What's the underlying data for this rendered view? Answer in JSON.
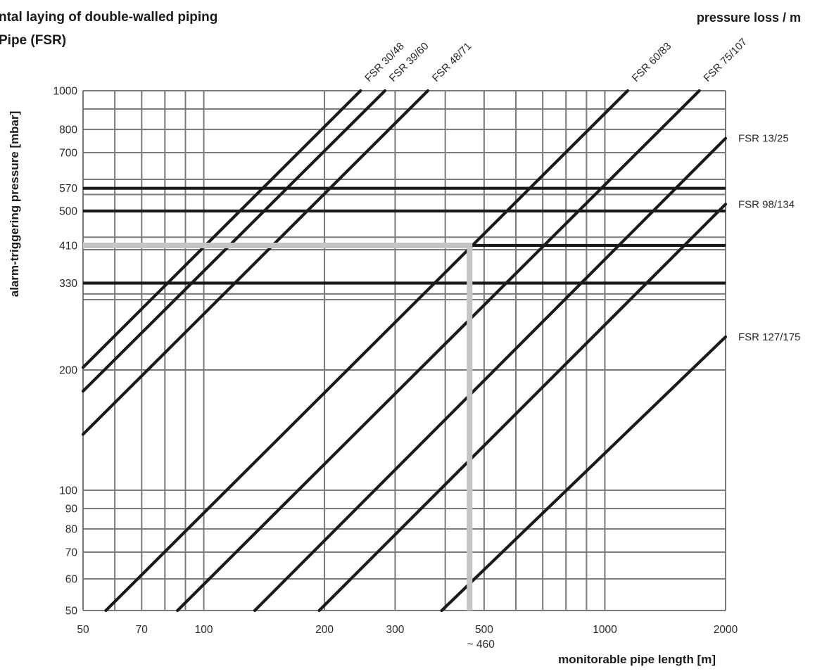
{
  "title_lines": [
    "ntal laying of double-walled piping",
    "Pipe (FSR)"
  ],
  "corner_label": "pressure loss / m",
  "chart_data": {
    "type": "line",
    "xscale": "log",
    "yscale": "log",
    "xlim": [
      50,
      2000
    ],
    "ylim": [
      50,
      1000
    ],
    "xlabel": "monitorable pipe length [m]",
    "ylabel": "alarm-triggering pressure [mbar]",
    "grid": true,
    "x_ticks": [
      {
        "value": 50,
        "label": "50"
      },
      {
        "value": 70,
        "label": "70"
      },
      {
        "value": 100,
        "label": "100"
      },
      {
        "value": 200,
        "label": "200"
      },
      {
        "value": 300,
        "label": "300"
      },
      {
        "value": 500,
        "label": "500"
      },
      {
        "value": 1000,
        "label": "1000"
      },
      {
        "value": 2000,
        "label": "2000"
      }
    ],
    "x_gridlines": [
      50,
      60,
      70,
      80,
      90,
      100,
      200,
      300,
      400,
      500,
      600,
      700,
      800,
      900,
      1000,
      2000
    ],
    "y_ticks": [
      {
        "value": 50,
        "label": "50"
      },
      {
        "value": 60,
        "label": "60"
      },
      {
        "value": 70,
        "label": "70"
      },
      {
        "value": 80,
        "label": "80"
      },
      {
        "value": 90,
        "label": "90"
      },
      {
        "value": 100,
        "label": "100"
      },
      {
        "value": 200,
        "label": "200"
      },
      {
        "value": 330,
        "label": "330"
      },
      {
        "value": 410,
        "label": "410"
      },
      {
        "value": 500,
        "label": "500"
      },
      {
        "value": 570,
        "label": "570"
      },
      {
        "value": 700,
        "label": "700"
      },
      {
        "value": 800,
        "label": "800"
      },
      {
        "value": 1000,
        "label": "1000"
      }
    ],
    "y_gridlines": [
      50,
      60,
      70,
      80,
      90,
      100,
      200,
      300,
      400,
      500,
      600,
      700,
      800,
      900,
      1000
    ],
    "series": [
      {
        "name": "FSR 30/48",
        "points": [
          [
            50,
            203
          ],
          [
            246,
            1000
          ]
        ],
        "label_position": "top"
      },
      {
        "name": "FSR 39/60",
        "points": [
          [
            50,
            177
          ],
          [
            283,
            1000
          ]
        ],
        "label_position": "top"
      },
      {
        "name": "FSR 48/71",
        "points": [
          [
            50,
            138
          ],
          [
            362,
            1000
          ]
        ],
        "label_position": "top"
      },
      {
        "name": "FSR 60/83",
        "points": [
          [
            57,
            50
          ],
          [
            1140,
            1000
          ]
        ],
        "label_position": "top"
      },
      {
        "name": "FSR 75/107",
        "points": [
          [
            86,
            50
          ],
          [
            1720,
            1000
          ]
        ],
        "label_position": "top"
      },
      {
        "name": "FSR 13/25",
        "points": [
          [
            134,
            50
          ],
          [
            2000,
            760
          ]
        ],
        "label_position": "right"
      },
      {
        "name": "FSR 98/134",
        "points": [
          [
            194,
            50
          ],
          [
            2000,
            520
          ]
        ],
        "label_position": "right"
      },
      {
        "name": "FSR 127/175",
        "points": [
          [
            392,
            50
          ],
          [
            2000,
            242
          ]
        ],
        "label_position": "right"
      }
    ],
    "pressure_levels": [
      570,
      500,
      410,
      330
    ],
    "guide": {
      "pressure": 410,
      "length": 460,
      "label": "~ 460"
    }
  }
}
